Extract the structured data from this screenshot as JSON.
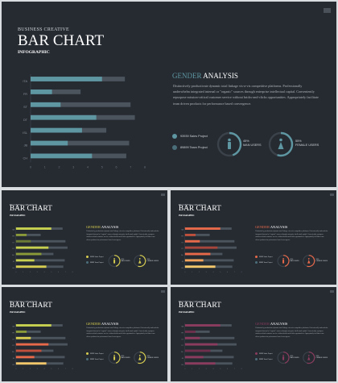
{
  "main": {
    "eyebrow": "BUSINESS CREATIVE",
    "title": "BAR CHART",
    "subtitle": "INFOGRAPHIC",
    "heading_word1": "GENDER",
    "heading_word2": "ANALYSIS",
    "paragraph": "Distinctively productivate dynamic total linkage vis-a-vis competitive platforms. Professionally underwhelm integrated internal or \"organic\" sources through enterprise intellectual capital. Conveniently repurpose mission-critical customer service without bricks-and-clicks opportunities. Appropriately facilitate team driven products for performance based convergence.",
    "legend": [
      {
        "label": "93939 Sales Project"
      },
      {
        "label": "89899 Team Project"
      }
    ],
    "man": {
      "pct": "45%",
      "label": "MAN USERS"
    },
    "female": {
      "pct": "55%",
      "label": "FEMALE USERS"
    }
  },
  "theme": {
    "slides": [
      {
        "accent": "#5e97a2",
        "bars": [
          "#5e97a2",
          "#5e97a2",
          "#5e97a2",
          "#5e97a2",
          "#5e97a2",
          "#5e97a2",
          "#5e97a2"
        ]
      },
      {
        "accent": "#d6cc4f",
        "bars": [
          "#c7d14f",
          "#8a9a39",
          "#6b7a34",
          "#c7d14f",
          "#8a9a39",
          "#c7d14f",
          "#d6cc4f"
        ]
      },
      {
        "accent": "#e8694a",
        "bars": [
          "#e8694a",
          "#c04f3c",
          "#e8694a",
          "#a8463c",
          "#e8694a",
          "#f2a25a",
          "#f4c76a"
        ]
      },
      {
        "accent": "#d6cc4f",
        "bars": [
          "#c7d14f",
          "#8a9a39",
          "#d6cc4f",
          "#e8694a",
          "#c04f3c",
          "#e8694a",
          "#f4c76a"
        ]
      },
      {
        "accent": "#8a3b5e",
        "bars": [
          "#8a3b5e",
          "#6e2f4c",
          "#8a3b5e",
          "#8a3b5e",
          "#6e2f4c",
          "#8a3b5e",
          "#8a3b5e"
        ]
      }
    ]
  },
  "chart_data": {
    "type": "bar",
    "categories": [
      "ITA",
      "FR",
      "ST",
      "DT",
      "ISL",
      "JB",
      "CH"
    ],
    "series": [
      {
        "values": [
          5.0,
          1.5,
          2.1,
          4.6,
          3.6,
          2.6,
          4.3
        ]
      },
      {
        "values": [
          6.6,
          3.5,
          7.0,
          7.3,
          5.3,
          6.9,
          6.7
        ]
      }
    ],
    "xticks": [
      "0",
      "1",
      "2",
      "3",
      "4",
      "5",
      "6",
      "7",
      "8"
    ],
    "xlim": [
      0,
      8
    ]
  }
}
